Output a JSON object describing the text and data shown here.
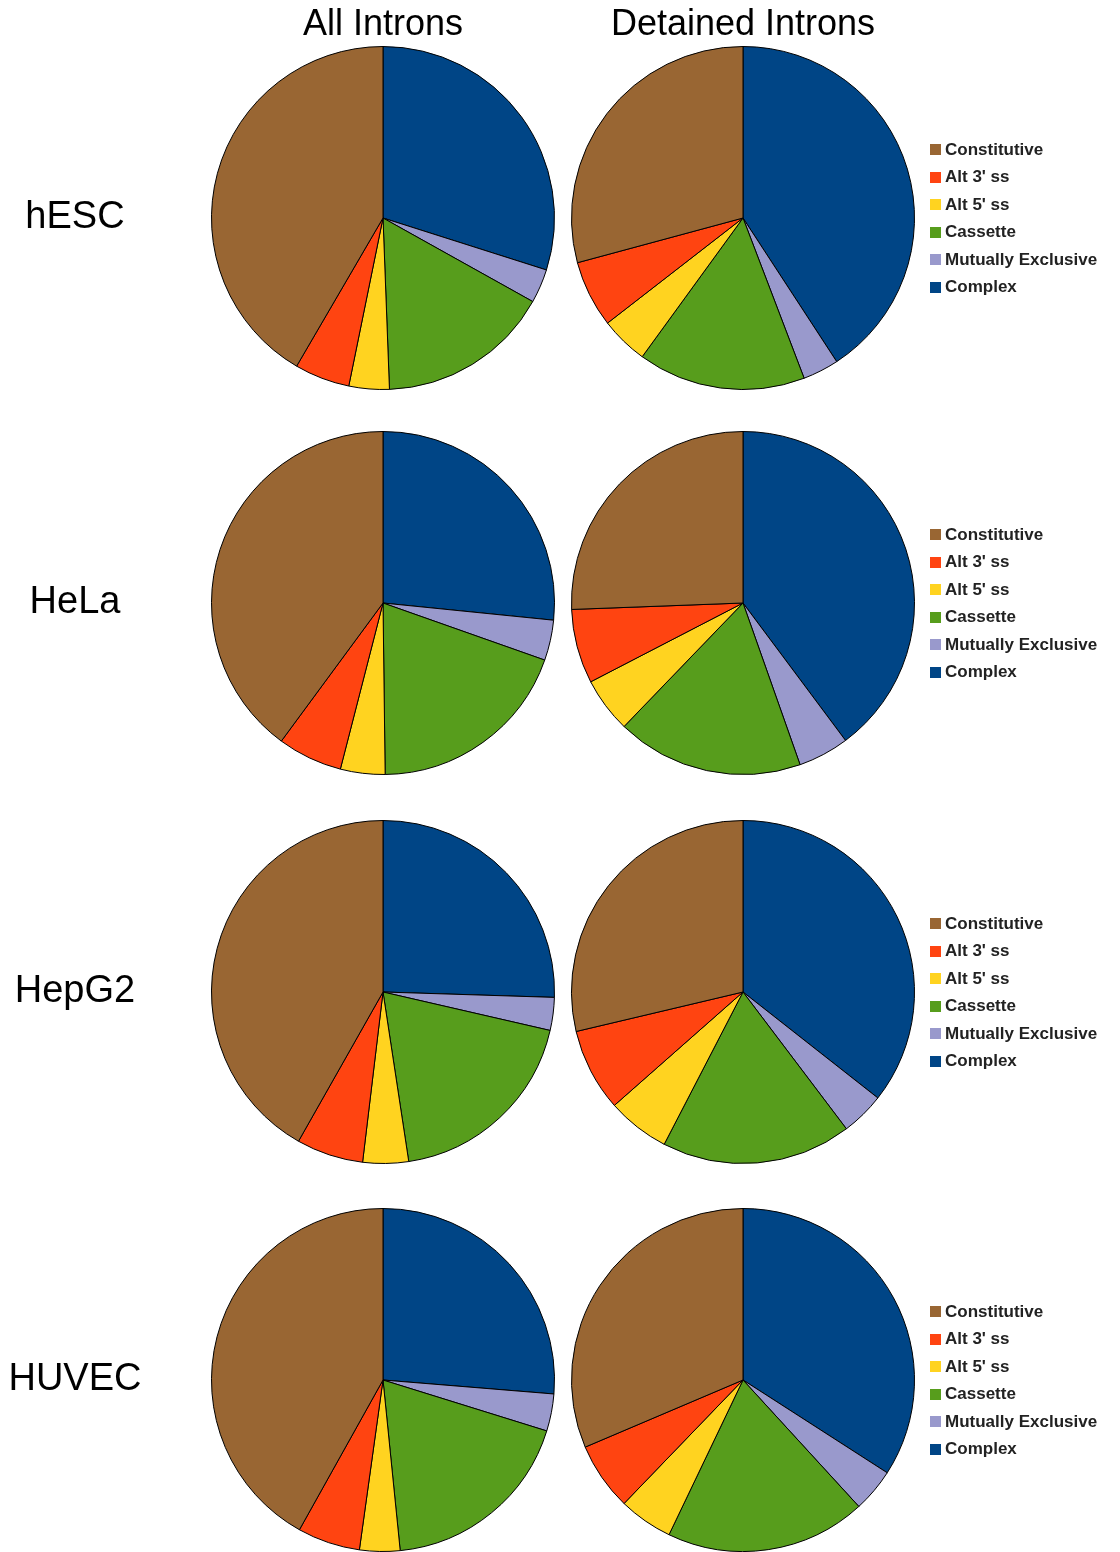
{
  "chart_data": [
    {
      "type": "pie",
      "ylabel": "hESC",
      "categories": [
        "Constitutive",
        "Alt 3' ss",
        "Alt 5' ss",
        "Cassette",
        "Mutually Exclusive",
        "Complex"
      ],
      "colors": [
        "#996633",
        "#ff4411",
        "#ffd320",
        "#579d1c",
        "#9999cc",
        "#004586"
      ],
      "legend": "right",
      "series": [
        {
          "name": "All Introns",
          "values": [
            41.6,
            5.2,
            3.8,
            16.3,
            3.2,
            29.9
          ]
        },
        {
          "name": "Detained Introns",
          "values": [
            29.2,
            6.3,
            4.5,
            15.8,
            3.4,
            40.8
          ]
        }
      ]
    },
    {
      "type": "pie",
      "ylabel": "HeLa",
      "categories": [
        "Constitutive",
        "Alt 3' ss",
        "Alt 5' ss",
        "Cassette",
        "Mutually Exclusive",
        "Complex"
      ],
      "colors": [
        "#996633",
        "#ff4411",
        "#ffd320",
        "#579d1c",
        "#9999cc",
        "#004586"
      ],
      "legend": "right",
      "series": [
        {
          "values": [
            39.9,
            6.1,
            4.2,
            19.4,
            3.8,
            26.6
          ]
        },
        {
          "values": [
            25.6,
            7.0,
            5.2,
            17.6,
            4.8,
            39.8
          ]
        }
      ]
    },
    {
      "type": "pie",
      "ylabel": "HepG2",
      "categories": [
        "Constitutive",
        "Alt 3' ss",
        "Alt 5' ss",
        "Cassette",
        "Mutually Exclusive",
        "Complex"
      ],
      "colors": [
        "#996633",
        "#ff4411",
        "#ffd320",
        "#579d1c",
        "#9999cc",
        "#004586"
      ],
      "legend": "right",
      "series": [
        {
          "values": [
            41.8,
            6.3,
            4.3,
            19.0,
            3.1,
            25.5
          ]
        },
        {
          "values": [
            28.7,
            7.8,
            5.9,
            17.9,
            4.1,
            35.6
          ]
        }
      ]
    },
    {
      "type": "pie",
      "ylabel": "HUVEC",
      "categories": [
        "Constitutive",
        "Alt 3' ss",
        "Alt 5' ss",
        "Cassette",
        "Mutually Exclusive",
        "Complex"
      ],
      "colors": [
        "#996633",
        "#ff4411",
        "#ffd320",
        "#579d1c",
        "#9999cc",
        "#004586"
      ],
      "legend": "right",
      "series": [
        {
          "values": [
            41.9,
            5.9,
            3.8,
            18.6,
            3.5,
            26.3
          ]
        },
        {
          "values": [
            31.4,
            6.4,
            5.1,
            18.9,
            4.1,
            34.1
          ]
        }
      ]
    }
  ]
}
